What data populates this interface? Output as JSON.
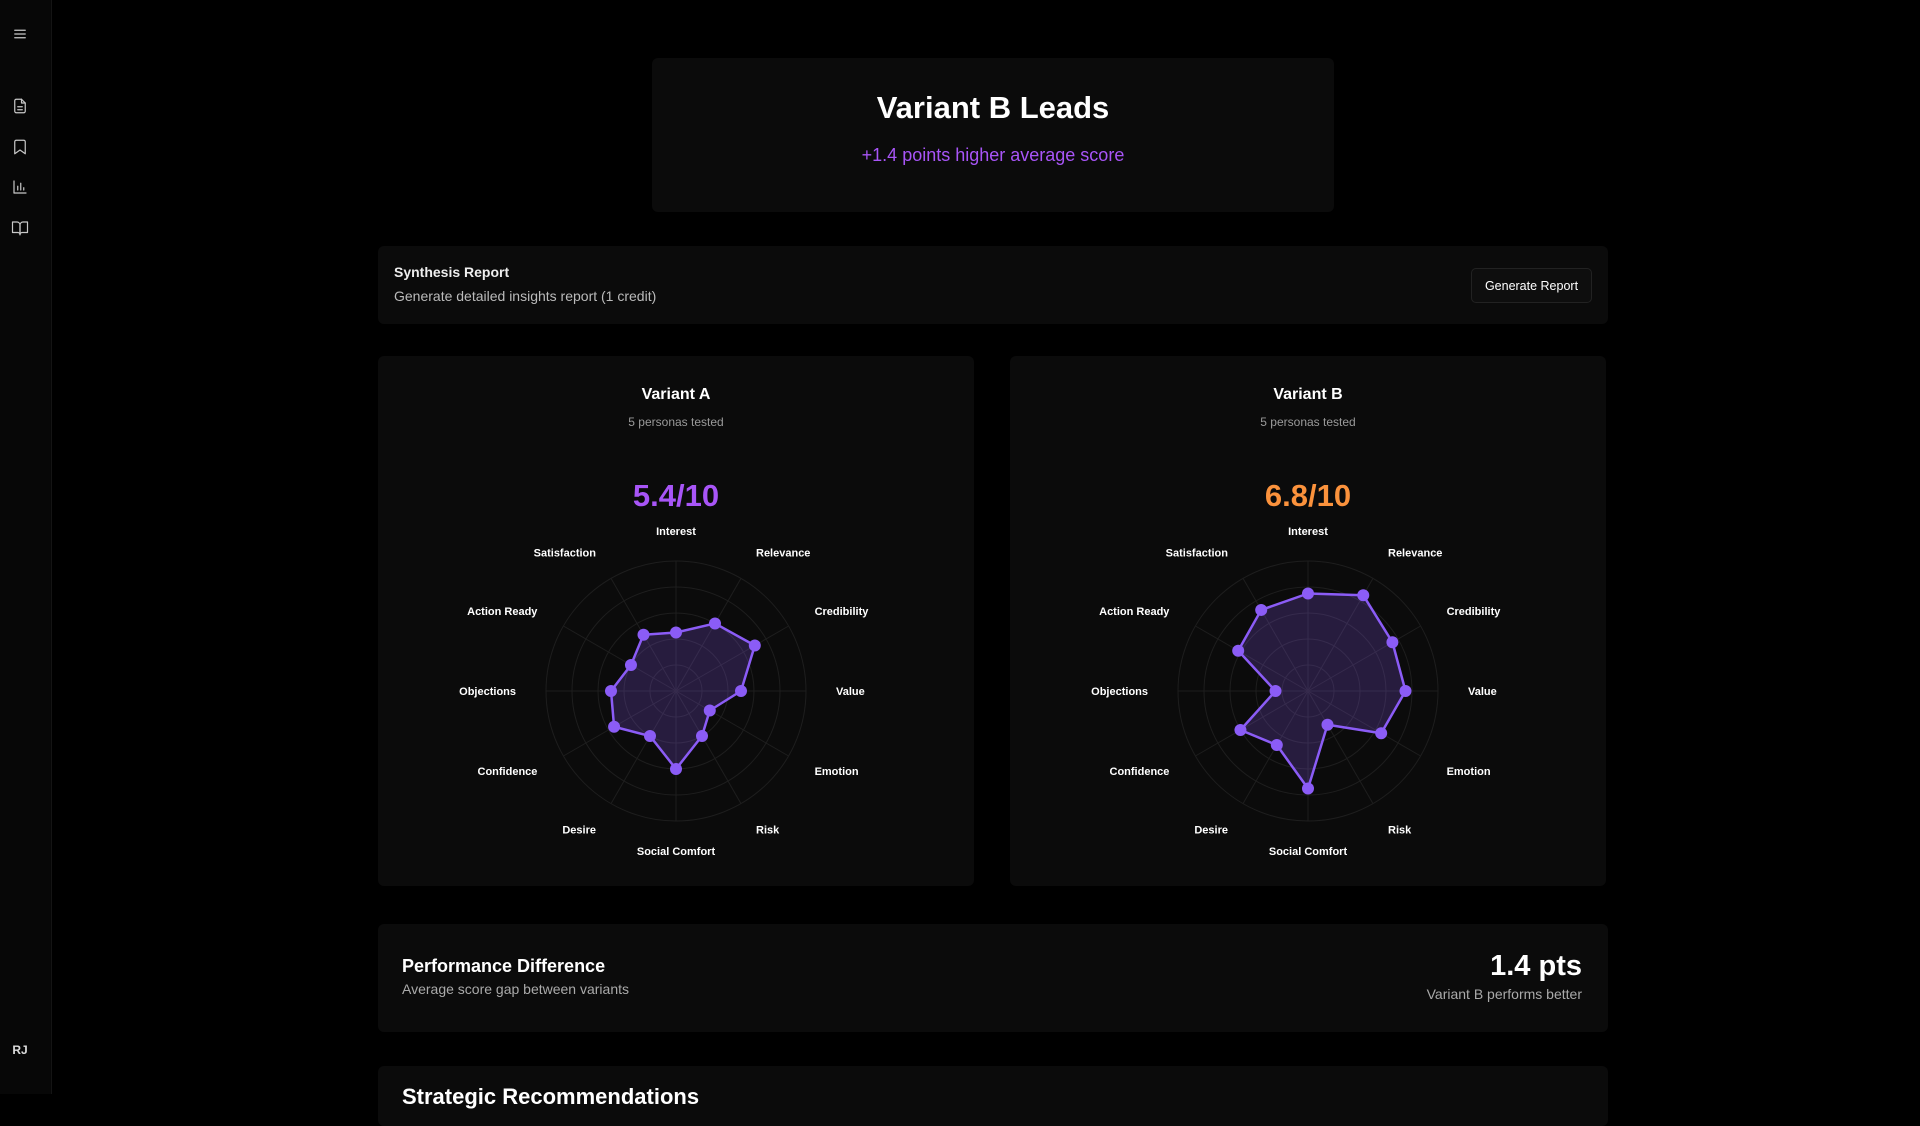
{
  "sidebar": {
    "icons": [
      "menu-icon",
      "document-icon",
      "bookmark-icon",
      "bar-chart-icon",
      "book-open-icon"
    ],
    "user_initials": "RJ"
  },
  "hero": {
    "title": "Variant B Leads",
    "subtitle": "+1.4 points higher average score",
    "accent": "#a855f7"
  },
  "synthesis": {
    "title": "Synthesis Report",
    "subtitle": "Generate detailed insights report (1 credit)",
    "button_label": "Generate Report"
  },
  "variants": [
    {
      "name": "Variant A",
      "personas": "5 personas tested",
      "score": "5.4/10",
      "score_color": "#a855f7"
    },
    {
      "name": "Variant B",
      "personas": "5 personas tested",
      "score": "6.8/10",
      "score_color": "#fb923c"
    }
  ],
  "chart_data": [
    {
      "type": "radar",
      "title": "Variant A",
      "categories": [
        "Interest",
        "Relevance",
        "Credibility",
        "Value",
        "Emotion",
        "Risk",
        "Social Comfort",
        "Desire",
        "Confidence",
        "Objections",
        "Action Ready",
        "Satisfaction"
      ],
      "values": [
        4.5,
        6,
        7,
        5,
        3,
        4,
        6,
        4,
        5.5,
        5,
        4,
        5
      ],
      "range": [
        0,
        10
      ],
      "grid_rings": 5,
      "color": "#8b5cf6"
    },
    {
      "type": "radar",
      "title": "Variant B",
      "categories": [
        "Interest",
        "Relevance",
        "Credibility",
        "Value",
        "Emotion",
        "Risk",
        "Social Comfort",
        "Desire",
        "Confidence",
        "Objections",
        "Action Ready",
        "Satisfaction"
      ],
      "values": [
        7.5,
        8.5,
        7.5,
        7.5,
        6.5,
        3,
        7.5,
        4.8,
        6,
        2.5,
        6.2,
        7.2
      ],
      "range": [
        0,
        10
      ],
      "grid_rings": 5,
      "color": "#8b5cf6"
    }
  ],
  "performance": {
    "title": "Performance Difference",
    "subtitle": "Average score gap between variants",
    "value": "1.4 pts",
    "note": "Variant B performs better"
  },
  "strategic": {
    "title": "Strategic Recommendations"
  }
}
